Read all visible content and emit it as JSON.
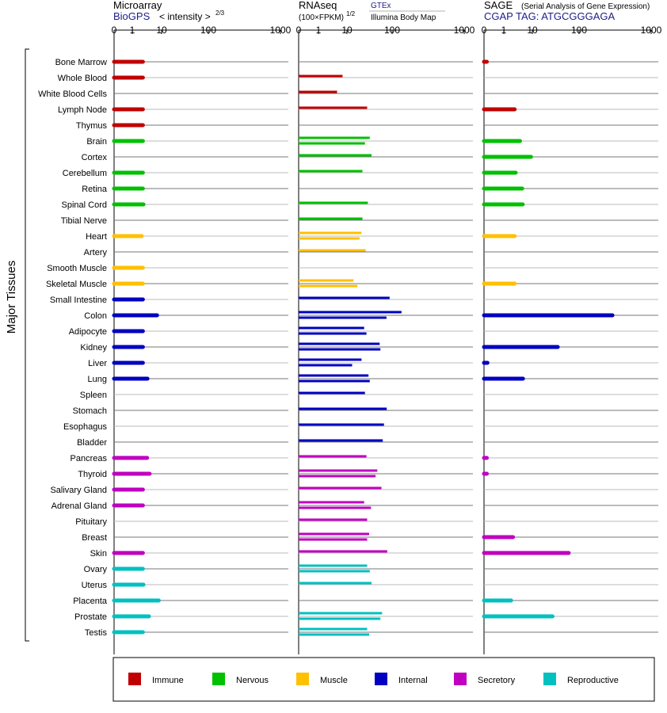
{
  "y_axis_label": "Major Tissues",
  "headers": {
    "microarray": {
      "title": "Microarray",
      "source": "BioGPS",
      "unit": "< intensity >",
      "exponent": "2/3"
    },
    "rnaseq": {
      "title": "RNAseq",
      "unit": "(100×FPKM)",
      "exponent": "1/2",
      "source": "GTEx",
      "source2": "Illumina Body Map"
    },
    "sage": {
      "title": "SAGE",
      "subtitle": "(Serial Analysis of Gene Expression)",
      "source": "CGAP  TAG: ATGCGGGAGA"
    }
  },
  "legend": [
    {
      "label": "Immune",
      "color": "#c00000"
    },
    {
      "label": "Nervous",
      "color": "#00c000"
    },
    {
      "label": "Muscle",
      "color": "#ffc000"
    },
    {
      "label": "Internal",
      "color": "#0000c0"
    },
    {
      "label": "Secretory",
      "color": "#c000c0"
    },
    {
      "label": "Reproductive",
      "color": "#00c0c0"
    }
  ],
  "chart_data": {
    "type": "bar",
    "orientation": "horizontal",
    "x_scale": "log-like (0, 1, 10, 100, 1000)",
    "xticks": [
      "0",
      "1",
      "10",
      "100",
      "1000"
    ],
    "xlim": [
      0,
      1000
    ],
    "panels": [
      "Microarray",
      "RNAseq",
      "SAGE"
    ],
    "tissues": [
      {
        "name": "Bone Marrow",
        "group": "Immune",
        "microarray": [
          2.3
        ],
        "rnaseq": [],
        "sage": [
          0.02
        ]
      },
      {
        "name": "Whole Blood",
        "group": "Immune",
        "microarray": [
          2.3
        ],
        "rnaseq": [
          7
        ],
        "sage": []
      },
      {
        "name": "White Blood Cells",
        "group": "Immune",
        "microarray": [],
        "rnaseq": [
          4.5
        ],
        "sage": []
      },
      {
        "name": "Lymph Node",
        "group": "Immune",
        "microarray": [
          2.3
        ],
        "rnaseq": [
          28
        ],
        "sage": [
          2.4
        ]
      },
      {
        "name": "Thymus",
        "group": "Immune",
        "microarray": [
          2.3
        ],
        "rnaseq": [],
        "sage": []
      },
      {
        "name": "Brain",
        "group": "Nervous",
        "microarray": [
          2.3
        ],
        "rnaseq": [
          32,
          25
        ],
        "sage": [
          3.7
        ]
      },
      {
        "name": "Cortex",
        "group": "Nervous",
        "microarray": [],
        "rnaseq": [
          35
        ],
        "sage": [
          9
        ]
      },
      {
        "name": "Cerebellum",
        "group": "Nervous",
        "microarray": [
          2.3
        ],
        "rnaseq": [
          22
        ],
        "sage": [
          2.6
        ]
      },
      {
        "name": "Retina",
        "group": "Nervous",
        "microarray": [
          2.3
        ],
        "rnaseq": [],
        "sage": [
          4.4
        ]
      },
      {
        "name": "Spinal Cord",
        "group": "Nervous",
        "microarray": [
          2.4
        ],
        "rnaseq": [
          29
        ],
        "sage": [
          4.6
        ]
      },
      {
        "name": "Tibial Nerve",
        "group": "Nervous",
        "microarray": [],
        "rnaseq": [
          22
        ],
        "sage": []
      },
      {
        "name": "Heart",
        "group": "Muscle",
        "microarray": [
          2.1
        ],
        "rnaseq": [
          21,
          19
        ],
        "sage": [
          2.4
        ]
      },
      {
        "name": "Artery",
        "group": "Muscle",
        "microarray": [],
        "rnaseq": [
          26
        ],
        "sage": []
      },
      {
        "name": "Smooth Muscle",
        "group": "Muscle",
        "microarray": [
          2.3
        ],
        "rnaseq": [],
        "sage": []
      },
      {
        "name": "Skeletal Muscle",
        "group": "Muscle",
        "microarray": [
          2.3
        ],
        "rnaseq": [
          14,
          17
        ],
        "sage": [
          2.4
        ]
      },
      {
        "name": "Small Intestine",
        "group": "Internal",
        "microarray": [
          2.3
        ],
        "rnaseq": [
          88
        ],
        "sage": []
      },
      {
        "name": "Colon",
        "group": "Internal",
        "microarray": [
          7
        ],
        "rnaseq": [
          135,
          75
        ],
        "sage": [
          290
        ]
      },
      {
        "name": "Adipocyte",
        "group": "Internal",
        "microarray": [
          2.3
        ],
        "rnaseq": [
          24,
          27
        ],
        "sage": []
      },
      {
        "name": "Kidney",
        "group": "Internal",
        "microarray": [
          2.3
        ],
        "rnaseq": [
          53,
          55
        ],
        "sage": [
          35
        ]
      },
      {
        "name": "Liver",
        "group": "Internal",
        "microarray": [
          2.3
        ],
        "rnaseq": [
          21,
          13
        ],
        "sage": [
          0.03
        ]
      },
      {
        "name": "Lung",
        "group": "Internal",
        "microarray": [
          3.3
        ],
        "rnaseq": [
          30,
          32
        ],
        "sage": [
          4.7
        ]
      },
      {
        "name": "Spleen",
        "group": "Internal",
        "microarray": [],
        "rnaseq": [
          25
        ],
        "sage": []
      },
      {
        "name": "Stomach",
        "group": "Internal",
        "microarray": [],
        "rnaseq": [
          76
        ],
        "sage": []
      },
      {
        "name": "Esophagus",
        "group": "Internal",
        "microarray": [],
        "rnaseq": [
          66
        ],
        "sage": []
      },
      {
        "name": "Bladder",
        "group": "Internal",
        "microarray": [],
        "rnaseq": [
          62
        ],
        "sage": []
      },
      {
        "name": "Pancreas",
        "group": "Secretory",
        "microarray": [
          3.2
        ],
        "rnaseq": [
          27
        ],
        "sage": [
          0.02
        ]
      },
      {
        "name": "Thyroid",
        "group": "Secretory",
        "microarray": [
          3.9
        ],
        "rnaseq": [
          47,
          43
        ],
        "sage": [
          0.02
        ]
      },
      {
        "name": "Salivary Gland",
        "group": "Secretory",
        "microarray": [
          2.3
        ],
        "rnaseq": [
          58
        ],
        "sage": []
      },
      {
        "name": "Adrenal Gland",
        "group": "Secretory",
        "microarray": [
          2.3
        ],
        "rnaseq": [
          24,
          34
        ],
        "sage": []
      },
      {
        "name": "Pituitary",
        "group": "Secretory",
        "microarray": [],
        "rnaseq": [
          28
        ],
        "sage": []
      },
      {
        "name": "Breast",
        "group": "Secretory",
        "microarray": [],
        "rnaseq": [
          31,
          28
        ],
        "sage": [
          2.1
        ]
      },
      {
        "name": "Skin",
        "group": "Secretory",
        "microarray": [
          2.3
        ],
        "rnaseq": [
          78
        ],
        "sage": [
          60
        ]
      },
      {
        "name": "Ovary",
        "group": "Reproductive",
        "microarray": [
          2.3
        ],
        "rnaseq": [
          28,
          32
        ],
        "sage": []
      },
      {
        "name": "Uterus",
        "group": "Reproductive",
        "microarray": [
          2.4
        ],
        "rnaseq": [
          35
        ],
        "sage": []
      },
      {
        "name": "Placenta",
        "group": "Reproductive",
        "microarray": [
          8
        ],
        "rnaseq": [],
        "sage": [
          1.8
        ]
      },
      {
        "name": "Prostate",
        "group": "Reproductive",
        "microarray": [
          3.7
        ],
        "rnaseq": [
          60,
          55
        ],
        "sage": [
          27
        ]
      },
      {
        "name": "Testis",
        "group": "Reproductive",
        "microarray": [
          2.3
        ],
        "rnaseq": [
          28,
          31
        ],
        "sage": []
      }
    ]
  }
}
